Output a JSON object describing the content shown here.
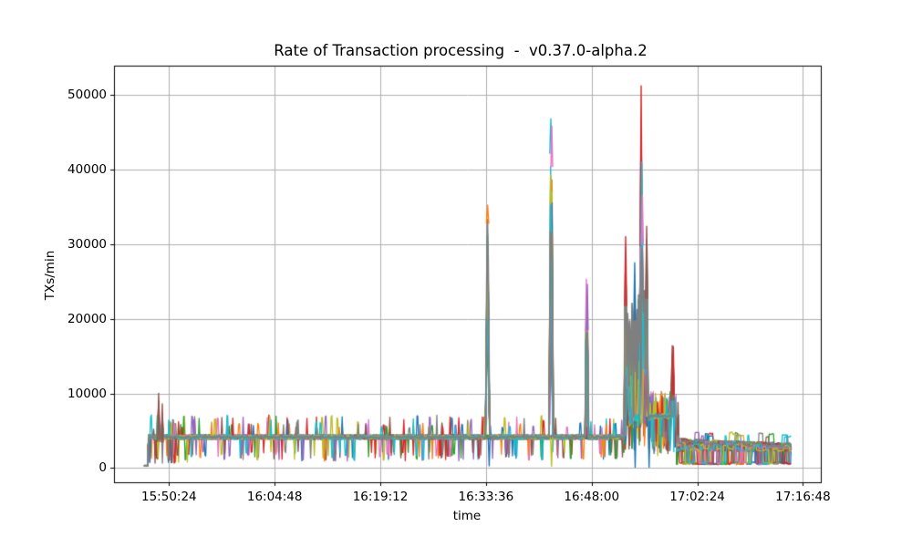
{
  "chart_data": {
    "type": "line",
    "title": "Rate of Transaction processing  -  v0.37.0-alpha.2",
    "xlabel": "time",
    "ylabel": "TXs/min",
    "x_tick_labels": [
      "15:50:24",
      "16:04:48",
      "16:19:12",
      "16:33:36",
      "16:48:00",
      "17:02:24",
      "17:16:48"
    ],
    "x_tick_seconds": [
      0,
      864,
      1728,
      2592,
      3456,
      4320,
      5184
    ],
    "y_tick_labels": [
      "0",
      "10000",
      "20000",
      "30000",
      "40000",
      "50000"
    ],
    "y_tick_values": [
      0,
      10000,
      20000,
      30000,
      40000,
      50000
    ],
    "xlim_seconds": [
      -450,
      5330
    ],
    "ylim": [
      -1900,
      53900
    ],
    "grid": true,
    "grid_color": "#b0b0b0",
    "frame_color": "#000000",
    "background": "#ffffff",
    "legend": "none",
    "palette": [
      "#1f77b4",
      "#ff7f0e",
      "#2ca02c",
      "#d62728",
      "#9467bd",
      "#8c564b",
      "#e377c2",
      "#7f7f7f",
      "#bcbd22",
      "#17becf"
    ],
    "top_series_color": "#7f7f7f",
    "n_series": 30,
    "seed": 1337,
    "step_seconds": 6,
    "data_start_s": -204,
    "data_end_s": 5090,
    "warmup": {
      "flat_until_s": -172,
      "flat_value": 250
    },
    "baseline": {
      "level": 4150,
      "noise": 300,
      "end_s": 3728,
      "early_until_s": 150
    },
    "cluster": {
      "start_s": 3728,
      "end_s": 3925,
      "base": 6300,
      "noise": 900,
      "dip_prob": 0.07,
      "dip_range": [
        2000,
        4500
      ]
    },
    "plateau": {
      "start_s": 3925,
      "end_s": 4150,
      "level": 6950,
      "noise": 380,
      "up_prob": 0.05,
      "up_range": [
        8500,
        10300
      ],
      "down_prob": 0.09,
      "down_range": [
        1600,
        5200
      ]
    },
    "tail": {
      "start_s": 4165,
      "end_s": 5090,
      "high": 3900,
      "high_end": 3300,
      "low": 2250,
      "dropout_prob": 0.13,
      "dropout_level": 650,
      "blip_prob": 0.015,
      "blip_range": [
        4200,
        4800
      ]
    },
    "mini_spikes": {
      "up_prob": 0.007,
      "down_prob": 0.008,
      "up_amp": [
        1200,
        2900
      ],
      "down_level": [
        1000,
        2200
      ],
      "early_up_prob": 0.013,
      "early_down_prob": 0.018,
      "early_down_level": [
        600,
        1800
      ]
    },
    "events": [
      {
        "t_s": -85,
        "peak": 10000,
        "color": "#8c564b",
        "width_s": 14,
        "share": 0.25,
        "tip_from": 0.35,
        "top_v": 7500
      },
      {
        "t_s": -55,
        "peak": 8600,
        "color": "#8c564b",
        "width_s": 12,
        "share": 0.2,
        "tip_from": 0.4,
        "top_v": 7000
      },
      {
        "t_s": 2605,
        "peak": 35200,
        "color": "#ff7f0e",
        "width_s": 16,
        "share": 0.85,
        "tip_from": 0.93,
        "top_v": 34600
      },
      {
        "t_s": 3122,
        "peak": 46800,
        "color": "#17becf",
        "width_s": 14,
        "share": 0.85,
        "tip_from": 0.9,
        "top_v": 45200
      },
      {
        "t_s": 3130,
        "peak": 45800,
        "color": "#e377c2",
        "width_s": 12,
        "share": 0.5,
        "tip_from": 0.88
      },
      {
        "t_s": 3413,
        "peak": 25300,
        "color": "#e377c2",
        "width_s": 12,
        "share": 0.6,
        "tip_from": 0.72,
        "top_v": 19600
      },
      {
        "t_s": 3421,
        "peak": 24600,
        "color": "#9467bd",
        "width_s": 10,
        "share": 0.4,
        "tip_from": 0.75
      },
      {
        "t_s": 3734,
        "peak": 31000,
        "color": "#d62728",
        "width_s": 14,
        "share": 0.7,
        "tip_from": 0.7,
        "top_v": 28500
      },
      {
        "t_s": 3752,
        "peak": 24000,
        "color": "#7f7f7f",
        "width_s": 14,
        "share": 0.7,
        "tip": false
      },
      {
        "t_s": 3770,
        "peak": 23200,
        "color": "#7f7f7f",
        "width_s": 12,
        "share": 0.6,
        "tip": false
      },
      {
        "t_s": 3788,
        "peak": 26000,
        "color": "#7f7f7f",
        "width_s": 12,
        "share": 0.65,
        "tip": false
      },
      {
        "t_s": 3808,
        "peak": 27500,
        "color": "#1f77b4",
        "width_s": 12,
        "share": 0.7,
        "tip_from": 0.72,
        "top_v": 25500
      },
      {
        "t_s": 3826,
        "peak": 25000,
        "color": "#7f7f7f",
        "width_s": 12,
        "share": 0.65,
        "tip": false
      },
      {
        "t_s": 3843,
        "peak": 29000,
        "color": "#7f7f7f",
        "width_s": 12,
        "share": 0.7,
        "tip": false
      },
      {
        "t_s": 3861,
        "peak": 51200,
        "color": "#d62728",
        "width_s": 14,
        "share": 0.8,
        "tip_from": 0.58,
        "top_v": 31500
      },
      {
        "t_s": 3866,
        "peak": 41000,
        "color": "#17becf",
        "width_s": 12,
        "share": 0.6,
        "tip_from": 0.72,
        "top_v": 31000
      },
      {
        "t_s": 3871,
        "peak": 36500,
        "color": "#e377c2",
        "width_s": 12,
        "share": 0.5,
        "tip_from": 0.82,
        "top_v": 31000
      },
      {
        "t_s": 3886,
        "peak": 28000,
        "color": "#7f7f7f",
        "width_s": 12,
        "share": 0.6,
        "tip": false
      },
      {
        "t_s": 3906,
        "peak": 32400,
        "color": "#8c564b",
        "width_s": 14,
        "share": 0.7,
        "tip_from": 0.7,
        "top_v": 30500
      },
      {
        "t_s": 4115,
        "peak": 16400,
        "color": "#8c564b",
        "width_s": 14,
        "share": 0.8,
        "tip_from": 0.55,
        "top_v": 15800
      },
      {
        "t_s": 4124,
        "peak": 16300,
        "color": "#d62728",
        "width_s": 12,
        "share": 0.7,
        "tip_from": 0.6
      },
      {
        "t_s": 4162,
        "peak": 8800,
        "color": "#8c564b",
        "width_s": 10,
        "share": 0.3,
        "tip_from": 0.5,
        "top_v": 8000
      }
    ],
    "dropouts": [
      {
        "t_s": 2618,
        "color": "#1f77b4",
        "low": 300
      },
      {
        "t_s": 3128,
        "color": "#bcbd22",
        "low": 250
      },
      {
        "t_s": 3812,
        "color": "#1f77b4",
        "low": 120
      },
      {
        "t_s": 3926,
        "color": "#1f77b4",
        "low": 120
      }
    ]
  }
}
